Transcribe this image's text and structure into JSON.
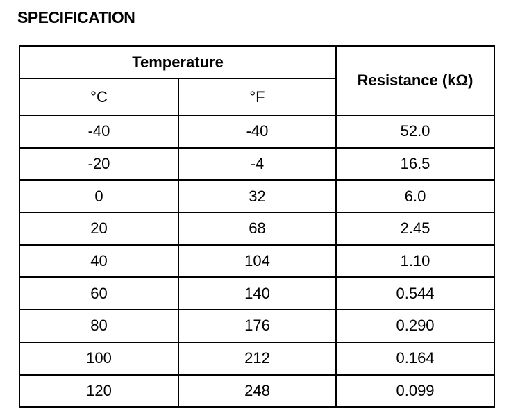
{
  "header": {
    "title": "SPECIFICATION"
  },
  "table": {
    "group_header": "Temperature",
    "columns": [
      "°C",
      "°F",
      "Resistance (kΩ)"
    ],
    "rows": [
      [
        "-40",
        "-40",
        "52.0"
      ],
      [
        "-20",
        "-4",
        "16.5"
      ],
      [
        "0",
        "32",
        "6.0"
      ],
      [
        "20",
        "68",
        "2.45"
      ],
      [
        "40",
        "104",
        "1.10"
      ],
      [
        "60",
        "140",
        "0.544"
      ],
      [
        "80",
        "176",
        "0.290"
      ],
      [
        "100",
        "212",
        "0.164"
      ],
      [
        "120",
        "248",
        "0.099"
      ]
    ]
  }
}
